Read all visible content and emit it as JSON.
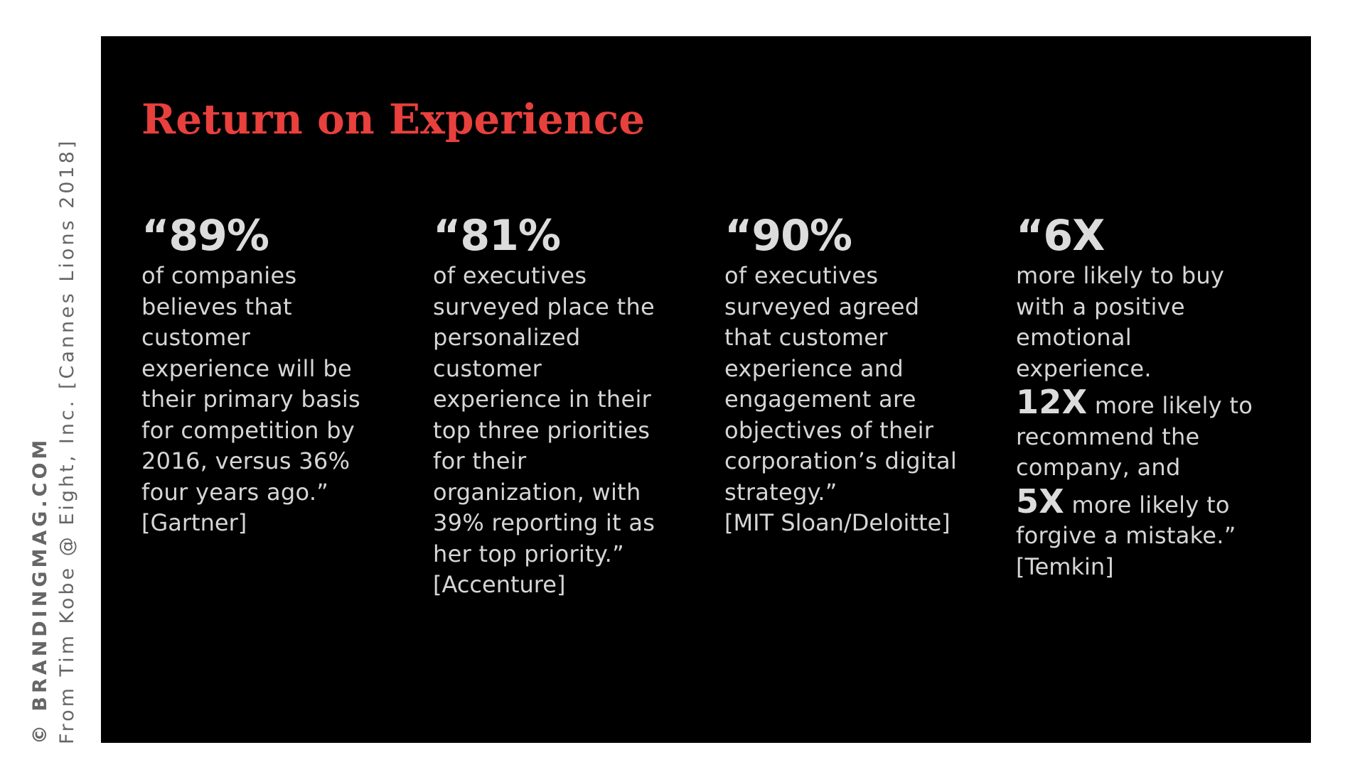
{
  "credit": {
    "site": "© BRANDINGMAG.COM",
    "attribution": "From Tim Kobe @ Eight, Inc. [Cannes Lions 2018]"
  },
  "slide": {
    "title": "Return on Experience",
    "title_color": "#e8403d",
    "background_color": "#000000"
  },
  "columns": [
    {
      "stat": "“89%",
      "lines": [
        "of companies",
        "believes that",
        "customer",
        "experience will be",
        "their primary basis",
        "for competition by",
        "2016, versus 36%",
        "four years ago.”"
      ],
      "source": "[Gartner]"
    },
    {
      "stat": "“81%",
      "lines": [
        "of executives",
        "surveyed place the",
        "personalized",
        "customer",
        "experience in their",
        "top three priorities",
        "for their",
        "organization, with",
        "39% reporting it as",
        "her top priority.”"
      ],
      "source": "[Accenture]"
    },
    {
      "stat": "“90%",
      "lines": [
        "of executives",
        "surveyed agreed",
        "that customer",
        "experience and",
        "engagement are",
        "objectives of their",
        "corporation’s digital",
        "strategy.”"
      ],
      "source": "[MIT Sloan/Deloitte]"
    },
    {
      "stat": "“6X",
      "lines": [
        "more likely to buy",
        "with a positive",
        "emotional",
        "experience."
      ],
      "extra": [
        {
          "stat": "12X",
          "first_line": " more likely to",
          "lines": [
            "recommend the",
            "company, and"
          ]
        },
        {
          "stat": "5X",
          "first_line": " more likely to",
          "lines": [
            "forgive a mistake.”"
          ]
        }
      ],
      "source": "[Temkin]"
    }
  ]
}
